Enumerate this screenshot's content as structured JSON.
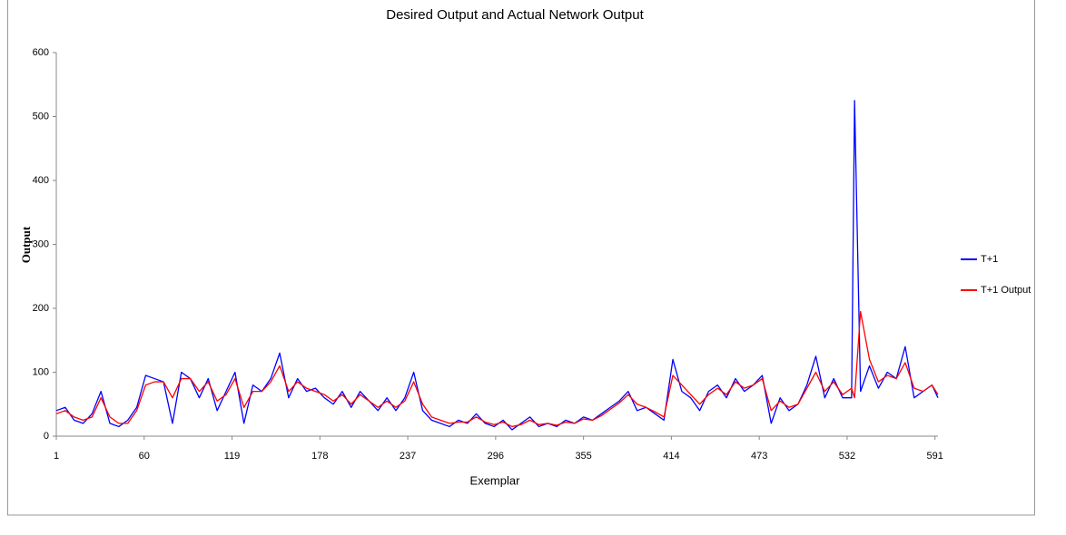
{
  "chart_data": {
    "type": "line",
    "title": "Desired Output and Actual Network Output",
    "x_label": "Exemplar",
    "y_label": "Output",
    "x": [
      1,
      7,
      13,
      19,
      25,
      31,
      37,
      43,
      49,
      55,
      61,
      67,
      73,
      79,
      85,
      91,
      97,
      103,
      109,
      115,
      121,
      127,
      133,
      139,
      145,
      151,
      157,
      163,
      169,
      175,
      181,
      187,
      193,
      199,
      205,
      211,
      217,
      223,
      229,
      235,
      241,
      247,
      253,
      259,
      265,
      271,
      277,
      283,
      289,
      295,
      301,
      307,
      313,
      319,
      325,
      331,
      337,
      343,
      349,
      355,
      361,
      367,
      373,
      379,
      385,
      391,
      397,
      403,
      409,
      415,
      421,
      427,
      433,
      439,
      445,
      451,
      457,
      463,
      469,
      475,
      481,
      487,
      493,
      499,
      505,
      511,
      517,
      523,
      529,
      535,
      537,
      541,
      547,
      553,
      559,
      565,
      571,
      577,
      583,
      589,
      593
    ],
    "series": [
      {
        "name": "T+1",
        "color": "#0000ff",
        "values": [
          40,
          45,
          25,
          20,
          35,
          70,
          20,
          15,
          25,
          45,
          95,
          90,
          85,
          20,
          100,
          90,
          60,
          90,
          40,
          70,
          100,
          20,
          80,
          70,
          90,
          130,
          60,
          90,
          70,
          75,
          60,
          50,
          70,
          45,
          70,
          55,
          40,
          60,
          40,
          60,
          100,
          40,
          25,
          20,
          15,
          25,
          20,
          35,
          20,
          15,
          25,
          10,
          20,
          30,
          15,
          20,
          15,
          25,
          20,
          30,
          25,
          35,
          45,
          55,
          70,
          40,
          45,
          35,
          25,
          120,
          70,
          60,
          40,
          70,
          80,
          60,
          90,
          70,
          80,
          95,
          20,
          60,
          40,
          50,
          80,
          125,
          60,
          90,
          60,
          60,
          525,
          70,
          110,
          75,
          100,
          90,
          140,
          60,
          70,
          80,
          60
        ]
      },
      {
        "name": "T+1 Output",
        "color": "#ff0000",
        "values": [
          35,
          40,
          30,
          25,
          30,
          60,
          30,
          20,
          20,
          40,
          80,
          85,
          85,
          60,
          90,
          90,
          70,
          85,
          55,
          65,
          90,
          45,
          70,
          70,
          85,
          110,
          70,
          85,
          75,
          70,
          65,
          55,
          65,
          50,
          65,
          55,
          45,
          55,
          45,
          55,
          85,
          50,
          30,
          25,
          20,
          22,
          22,
          30,
          22,
          18,
          22,
          15,
          18,
          25,
          18,
          20,
          17,
          22,
          20,
          27,
          25,
          32,
          42,
          52,
          65,
          50,
          45,
          38,
          30,
          95,
          80,
          65,
          50,
          65,
          75,
          65,
          85,
          75,
          80,
          90,
          40,
          55,
          45,
          50,
          75,
          100,
          70,
          85,
          65,
          75,
          60,
          195,
          120,
          85,
          95,
          90,
          115,
          75,
          70,
          80,
          65
        ]
      }
    ],
    "xlim": [
      1,
      593
    ],
    "xticks": [
      1,
      60,
      119,
      178,
      237,
      296,
      355,
      414,
      473,
      532,
      591
    ],
    "ylim": [
      0,
      600
    ],
    "yticks": [
      0,
      100,
      200,
      300,
      400,
      500,
      600
    ],
    "grid": false,
    "legend": "right"
  }
}
